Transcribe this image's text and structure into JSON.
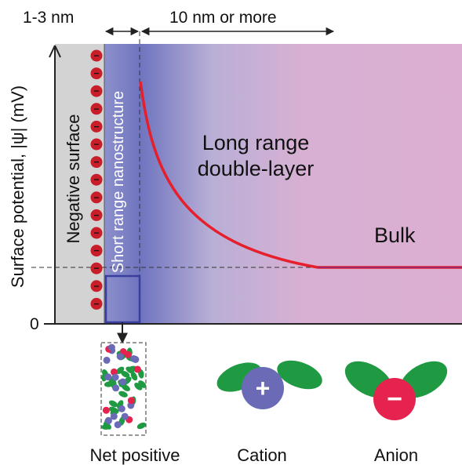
{
  "dimensions": {
    "narrow_label": "1-3 nm",
    "wide_label": "10 nm or more"
  },
  "axis": {
    "y_label": "Surface potential, |ψ| (mV)",
    "zero_label": "0"
  },
  "regions": {
    "surface_label": "Negative surface",
    "short_range_label": "Short range nanostructure",
    "long_range_line1": "Long range",
    "long_range_line2": "double-layer",
    "bulk_label": "Bulk"
  },
  "surface_charge_sign": "−",
  "ion_signs": {
    "cation": "+",
    "anion": "−"
  },
  "captions": {
    "net_positive": "Net positive",
    "cation": "Cation",
    "anion": "Anion"
  },
  "colors": {
    "surface_gray": "#d3d3d3",
    "short_range_blue": "#7d80c2",
    "bulk_pink": "#d9acd0",
    "potential_curve": "#e51f2b",
    "cation_blue": "#6a6ab6",
    "anion_red": "#e6224f",
    "water_green": "#1f9a43"
  }
}
